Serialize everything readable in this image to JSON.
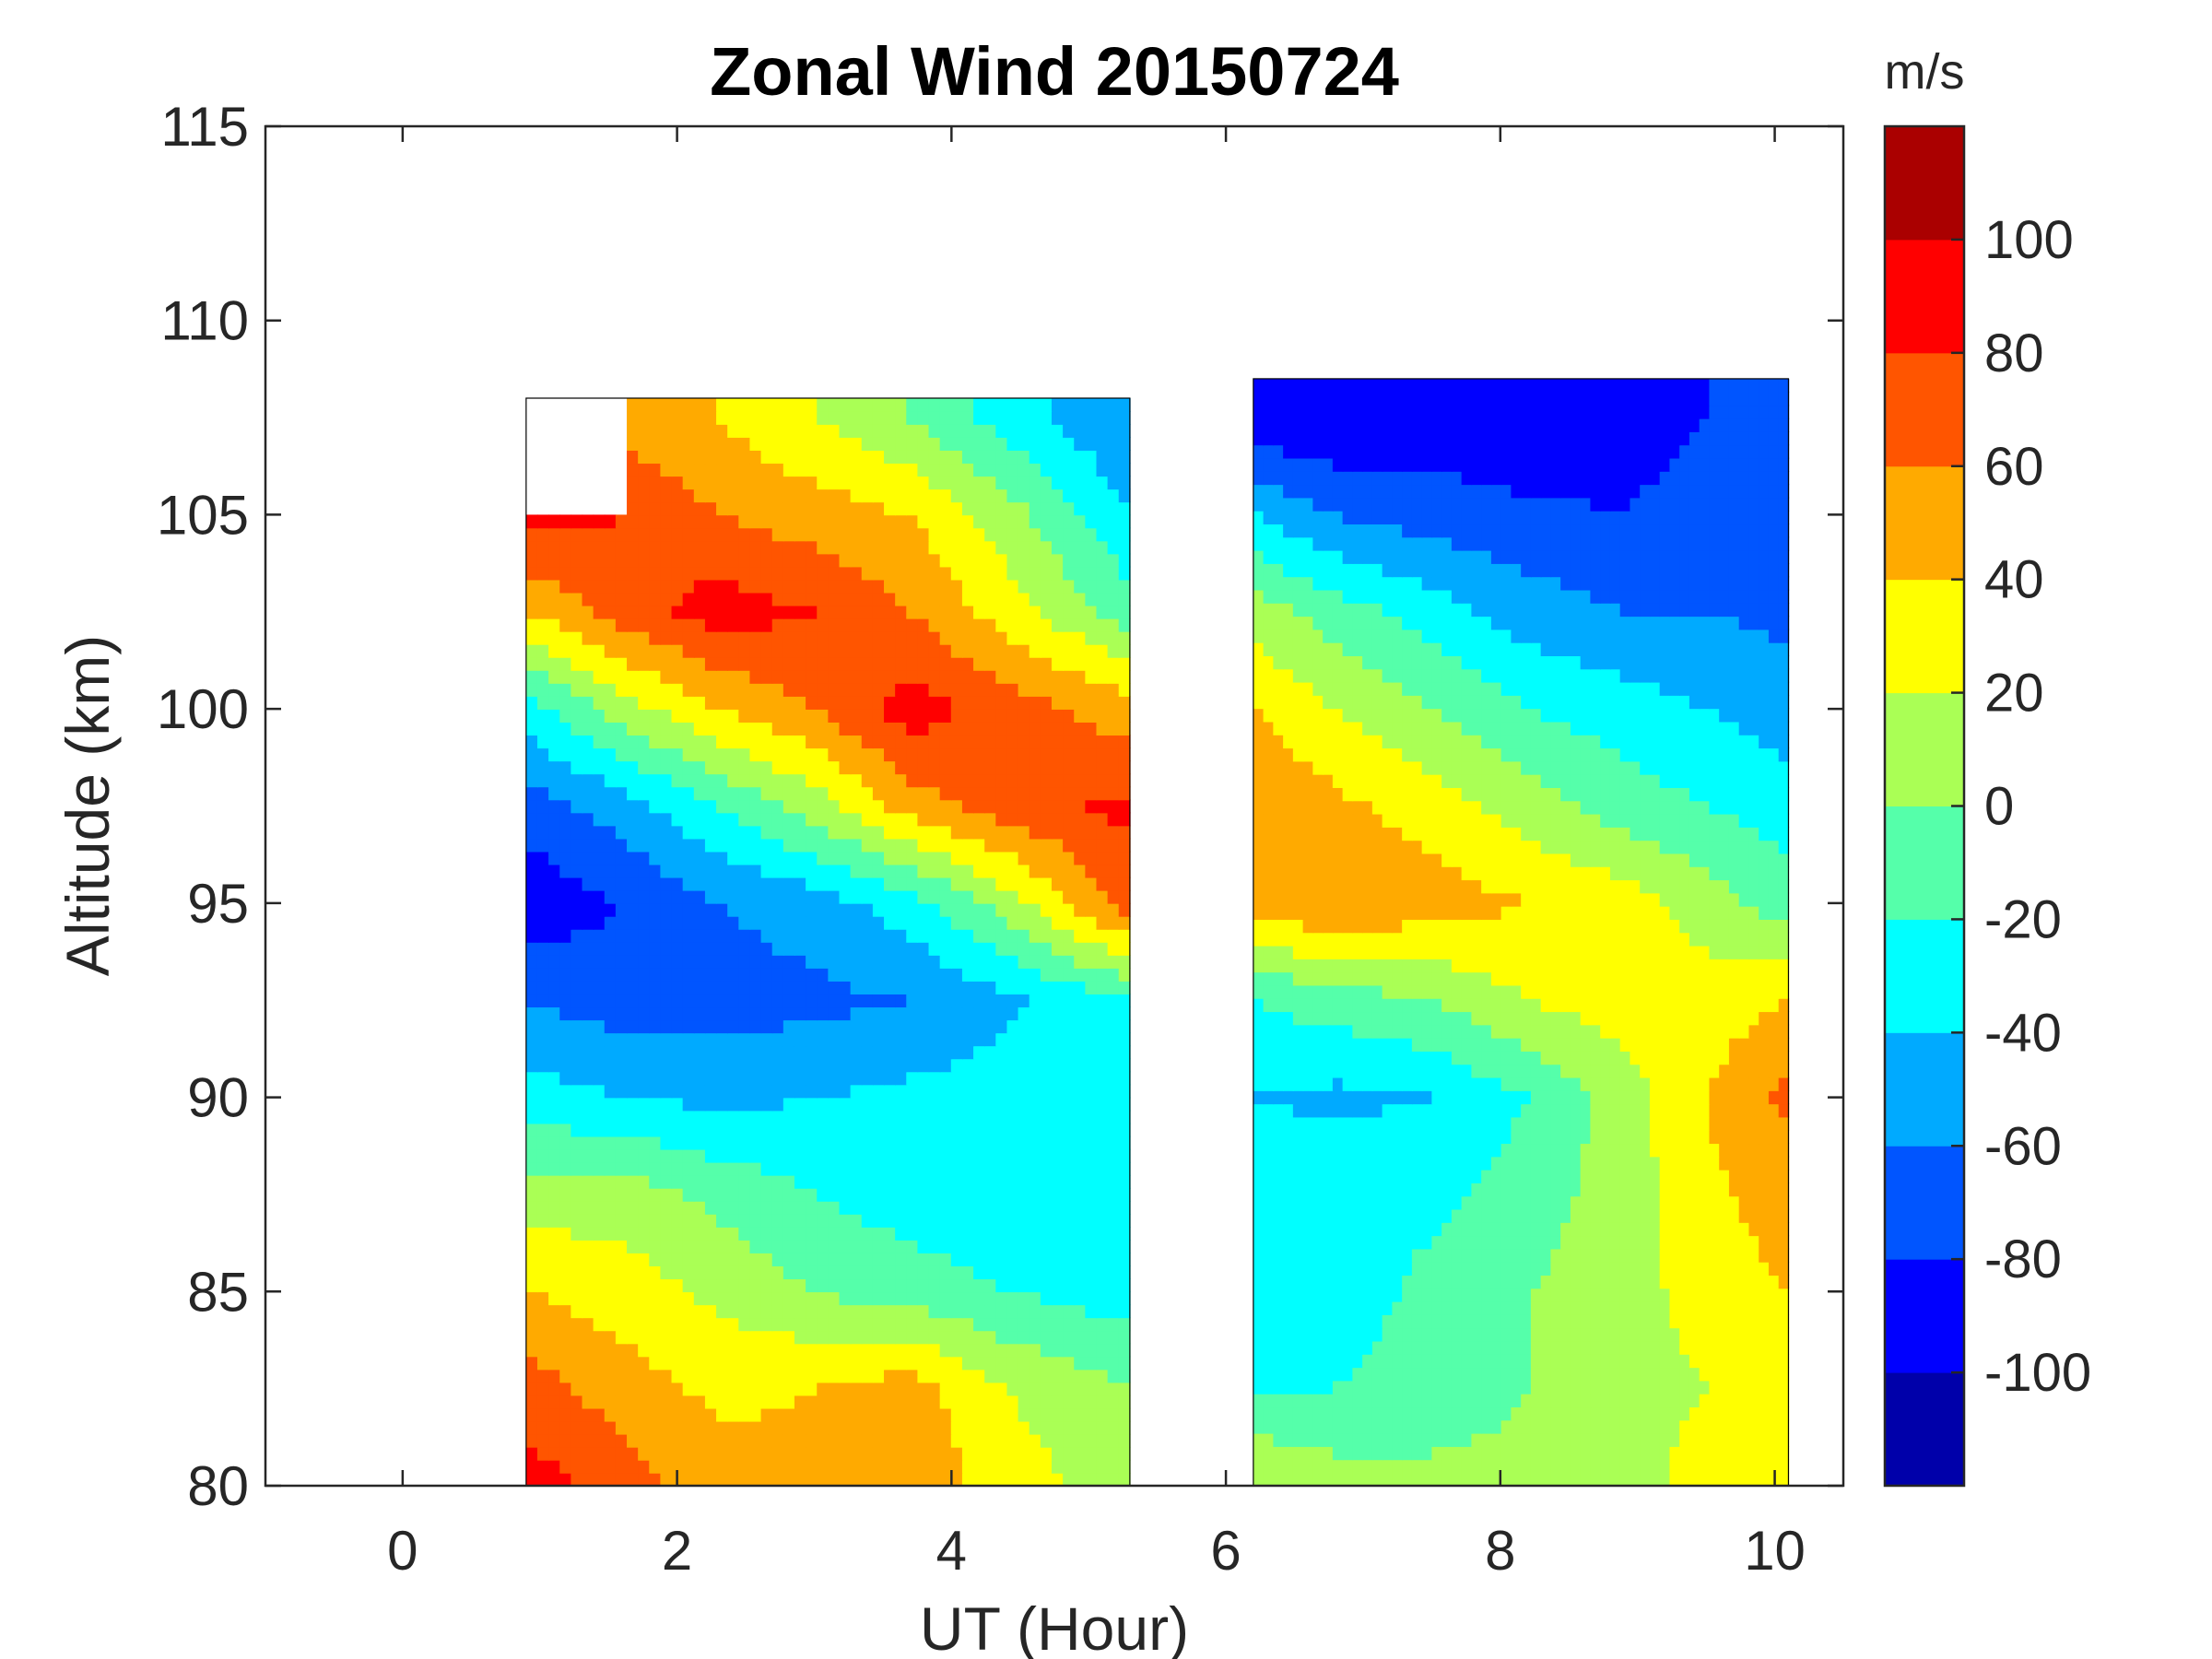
{
  "chart_data": {
    "type": "heatmap",
    "subtype": "filled-contour",
    "title": "Zonal Wind 20150724",
    "xlabel": "UT (Hour)",
    "ylabel": "Altitude (km)",
    "xlim": [
      -1,
      10.5
    ],
    "ylim": [
      80,
      115
    ],
    "xticks": [
      0,
      2,
      4,
      6,
      8,
      10
    ],
    "yticks": [
      80,
      85,
      90,
      95,
      100,
      105,
      110,
      115
    ],
    "colorbar": {
      "label": "m/s",
      "range": [
        -120,
        120
      ],
      "ticks": [
        -100,
        -80,
        -60,
        -40,
        -20,
        0,
        20,
        40,
        60,
        80,
        100
      ],
      "levels": [
        -120,
        -100,
        -80,
        -60,
        -40,
        -20,
        0,
        20,
        40,
        60,
        80,
        100,
        120
      ],
      "colors": [
        "#0000aa",
        "#0000ff",
        "#0055ff",
        "#00aaff",
        "#00ffff",
        "#55ffaa",
        "#aaff55",
        "#ffff00",
        "#ffaa00",
        "#ff5500",
        "#ff0000",
        "#aa0000"
      ]
    },
    "data_blocks": [
      {
        "name": "block-1",
        "ut_range": [
          0.9,
          5.3
        ],
        "altitude_range": [
          80,
          108
        ],
        "ut": [
          0.9,
          1.6,
          2.3,
          3.0,
          3.7,
          4.4,
          5.3
        ],
        "altitude": [
          80,
          82.5,
          85,
          87.5,
          90,
          92.5,
          95,
          97.5,
          100,
          102.5,
          105,
          107.5
        ],
        "zonal_wind": [
          [
            90,
            70,
            50,
            45,
            55,
            30,
            10
          ],
          [
            70,
            50,
            35,
            40,
            50,
            20,
            0
          ],
          [
            40,
            30,
            15,
            0,
            -10,
            -20,
            -30
          ],
          [
            10,
            10,
            -5,
            -20,
            -30,
            -35,
            -25
          ],
          [
            -30,
            -40,
            -45,
            -40,
            -35,
            -30,
            -20
          ],
          [
            -60,
            -70,
            -70,
            -65,
            -60,
            -45,
            -20
          ],
          [
            -95,
            -80,
            -60,
            -50,
            -30,
            10,
            70
          ],
          [
            -70,
            -50,
            -20,
            10,
            50,
            70,
            85
          ],
          [
            -30,
            10,
            40,
            60,
            90,
            70,
            50
          ],
          [
            40,
            70,
            90,
            80,
            60,
            30,
            -10
          ],
          [
            90,
            80,
            60,
            50,
            40,
            10,
            -40
          ],
          [
            null,
            50,
            40,
            20,
            0,
            -30,
            -60
          ]
        ]
      },
      {
        "name": "block-2",
        "ut_range": [
          6.2,
          10.1
        ],
        "altitude_range": [
          80,
          108.5
        ],
        "ut": [
          6.2,
          6.8,
          7.5,
          8.2,
          8.9,
          9.5,
          10.1
        ],
        "altitude": [
          80,
          82.5,
          85,
          87.5,
          90,
          92.5,
          95,
          97.5,
          100,
          102.5,
          105,
          107.5
        ],
        "zonal_wind": [
          [
            20,
            10,
            5,
            5,
            10,
            30,
            40
          ],
          [
            -20,
            -20,
            -10,
            0,
            10,
            20,
            30
          ],
          [
            -35,
            -30,
            -15,
            0,
            10,
            30,
            40
          ],
          [
            -30,
            -20,
            -25,
            -10,
            10,
            35,
            50
          ],
          [
            -40,
            -45,
            -40,
            -20,
            10,
            40,
            65
          ],
          [
            -20,
            -10,
            0,
            20,
            30,
            30,
            40
          ],
          [
            50,
            60,
            50,
            40,
            30,
            10,
            -10
          ],
          [
            60,
            45,
            30,
            10,
            -10,
            -20,
            -30
          ],
          [
            40,
            20,
            0,
            -20,
            -30,
            -40,
            -50
          ],
          [
            10,
            -10,
            -30,
            -50,
            -60,
            -60,
            -65
          ],
          [
            -40,
            -60,
            -70,
            -75,
            -80,
            -70,
            -65
          ],
          [
            -95,
            -100,
            -90,
            -100,
            -90,
            -80,
            -60
          ]
        ]
      }
    ]
  }
}
